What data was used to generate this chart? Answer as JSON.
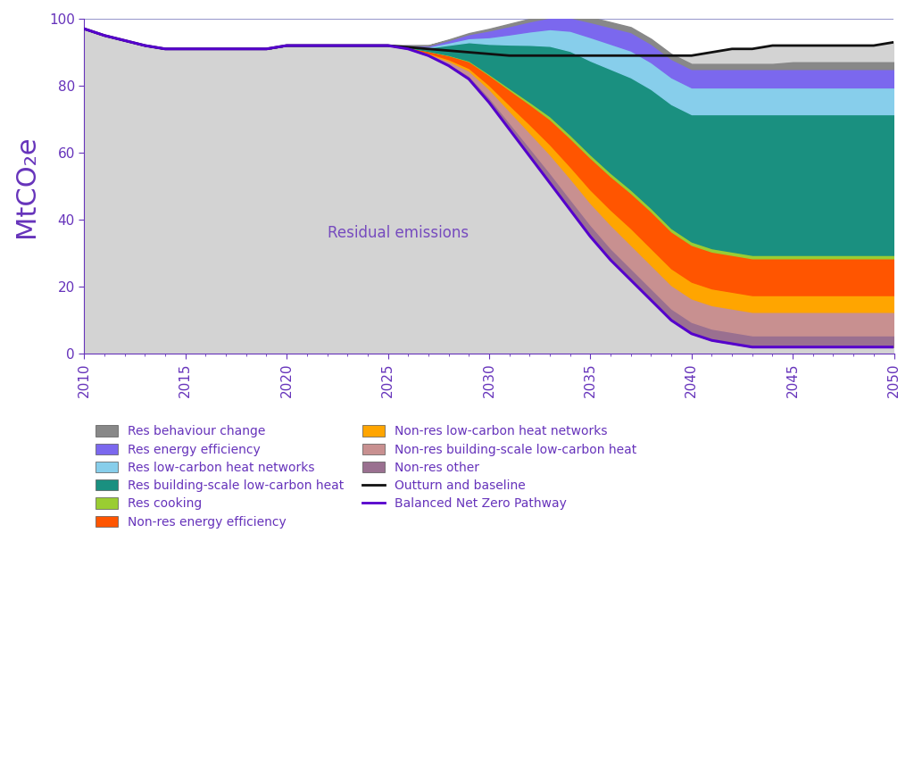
{
  "years": [
    2010,
    2011,
    2012,
    2013,
    2014,
    2015,
    2016,
    2017,
    2018,
    2019,
    2020,
    2021,
    2022,
    2023,
    2024,
    2025,
    2026,
    2027,
    2028,
    2029,
    2030,
    2031,
    2032,
    2033,
    2034,
    2035,
    2036,
    2037,
    2038,
    2039,
    2040,
    2041,
    2042,
    2043,
    2044,
    2045,
    2046,
    2047,
    2048,
    2049,
    2050
  ],
  "outturn_baseline": [
    97,
    95,
    93.5,
    92,
    91,
    91,
    91,
    91,
    91,
    91,
    92,
    92,
    92,
    92,
    92,
    92,
    91.5,
    91,
    90.5,
    90,
    89.5,
    89,
    89,
    89,
    89,
    89,
    89,
    89,
    89,
    89,
    89,
    90,
    91,
    91,
    92,
    92,
    92,
    92,
    92,
    92,
    93
  ],
  "bnz_pathway": [
    97,
    95,
    93.5,
    92,
    91,
    91,
    91,
    91,
    91,
    91,
    92,
    92,
    92,
    92,
    92,
    92,
    91,
    89,
    86,
    82,
    75,
    67,
    59,
    51,
    43,
    35,
    28,
    22,
    16,
    10,
    6,
    4,
    3,
    2,
    2,
    2,
    2,
    2,
    2,
    2,
    2
  ],
  "residual": [
    97,
    95,
    93.5,
    92,
    91,
    91,
    91,
    91,
    91,
    91,
    92,
    92,
    92,
    92,
    92,
    92,
    91,
    89,
    86,
    82,
    75,
    67,
    59,
    51,
    43,
    35,
    28,
    22,
    16,
    10,
    6,
    4,
    3,
    2,
    2,
    2,
    2,
    2,
    2,
    2,
    2
  ],
  "non_res_other": [
    0,
    0,
    0,
    0,
    0,
    0,
    0,
    0,
    0,
    0,
    0,
    0,
    0,
    0,
    0,
    0,
    0.1,
    0.3,
    0.6,
    1.0,
    1.5,
    2.0,
    2.5,
    3.0,
    3.2,
    3.5,
    3.5,
    3.5,
    3.5,
    3.5,
    3.5,
    3.5,
    3.5,
    3.5,
    3.5,
    3.5,
    3.5,
    3.5,
    3.5,
    3.5,
    3.5
  ],
  "non_res_building_scale": [
    0,
    0,
    0,
    0,
    0,
    0,
    0,
    0,
    0,
    0,
    0,
    0,
    0,
    0,
    0,
    0,
    0.1,
    0.3,
    0.8,
    1.5,
    2.5,
    3.5,
    4.5,
    5.5,
    6.2,
    6.5,
    7.0,
    7.0,
    7.0,
    7.0,
    7.0,
    7.0,
    7.0,
    7.0,
    7.0,
    7.0,
    7.0,
    7.0,
    7.0,
    7.0,
    7.0
  ],
  "non_res_lchn": [
    0,
    0,
    0,
    0,
    0,
    0,
    0,
    0,
    0,
    0,
    0,
    0,
    0,
    0,
    0,
    0,
    0.1,
    0.2,
    0.5,
    0.8,
    1.2,
    1.8,
    2.5,
    3.0,
    3.5,
    4.0,
    4.5,
    5.0,
    5.0,
    5.0,
    5.0,
    5.0,
    5.0,
    5.0,
    5.0,
    5.0,
    5.0,
    5.0,
    5.0,
    5.0,
    5.0
  ],
  "non_res_energy_efficiency": [
    0,
    0,
    0,
    0,
    0,
    0,
    0,
    0,
    0,
    0,
    0,
    0,
    0,
    0,
    0,
    0,
    0.2,
    0.6,
    1.2,
    2.0,
    3.0,
    4.5,
    6.0,
    7.5,
    8.5,
    9.5,
    10.0,
    10.5,
    11.0,
    11.0,
    11.0,
    11.0,
    11.0,
    11.0,
    11.0,
    11.0,
    11.0,
    11.0,
    11.0,
    11.0,
    11.0
  ],
  "res_cooking": [
    0,
    0,
    0,
    0,
    0,
    0,
    0,
    0,
    0,
    0,
    0,
    0,
    0,
    0,
    0,
    0,
    0,
    0,
    0.1,
    0.2,
    0.3,
    0.5,
    0.7,
    0.9,
    1.0,
    1.0,
    1.0,
    1.0,
    1.0,
    1.0,
    1.0,
    1.0,
    1.0,
    1.0,
    1.0,
    1.0,
    1.0,
    1.0,
    1.0,
    1.0,
    1.0
  ],
  "res_building_scale": [
    0,
    0,
    0,
    0,
    0,
    0,
    0,
    0,
    0,
    0,
    0,
    0,
    0,
    0,
    0,
    0,
    0.3,
    1.0,
    3.0,
    5.5,
    9.0,
    13.0,
    17.0,
    21.0,
    25.0,
    28.0,
    31.0,
    33.5,
    35.5,
    37.0,
    38.0,
    40.0,
    41.0,
    42.0,
    42.0,
    42.0,
    42.0,
    42.0,
    42.0,
    42.0,
    42.0
  ],
  "res_lchn": [
    0,
    0,
    0,
    0,
    0,
    0,
    0,
    0,
    0,
    0,
    0,
    0,
    0,
    0,
    0,
    0,
    0.1,
    0.3,
    0.7,
    1.2,
    2.0,
    3.0,
    4.0,
    5.0,
    6.0,
    7.0,
    7.5,
    8.0,
    8.0,
    8.0,
    8.0,
    8.0,
    8.0,
    8.0,
    8.0,
    8.0,
    8.0,
    8.0,
    8.0,
    8.0,
    8.0
  ],
  "res_energy_efficiency": [
    0,
    0,
    0,
    0,
    0,
    0,
    0,
    0,
    0,
    0,
    0,
    0,
    0,
    0,
    0,
    0,
    0.1,
    0.3,
    0.7,
    1.2,
    2.0,
    2.5,
    3.0,
    3.5,
    4.0,
    4.5,
    5.0,
    5.5,
    5.5,
    5.5,
    5.5,
    5.5,
    5.5,
    5.5,
    5.5,
    5.5,
    5.5,
    5.5,
    5.5,
    5.5,
    5.5
  ],
  "res_behaviour_change": [
    0,
    0,
    0,
    0,
    0,
    0,
    0,
    0,
    0,
    0,
    0,
    0,
    0,
    0,
    0,
    0,
    0.05,
    0.1,
    0.2,
    0.3,
    0.5,
    0.7,
    0.8,
    1.0,
    1.1,
    1.5,
    1.5,
    1.5,
    1.5,
    1.5,
    1.5,
    1.5,
    1.5,
    1.5,
    1.5,
    2.0,
    2.0,
    2.0,
    2.0,
    2.0,
    2.0
  ],
  "colors": {
    "residual": "#d3d3d3",
    "res_behaviour_change": "#888888",
    "res_energy_efficiency": "#7b68ee",
    "res_lchn": "#87ceeb",
    "res_building_scale": "#1a9080",
    "res_cooking": "#9acd32",
    "non_res_energy_efficiency": "#ff5500",
    "non_res_lchn": "#ffa500",
    "non_res_building_scale": "#c89090",
    "non_res_other": "#9a7090",
    "outturn_baseline": "#111111",
    "bnz_pathway": "#5500cc"
  },
  "ylim": [
    0,
    100
  ],
  "xlim": [
    2010,
    2050
  ],
  "ylabel": "MtCO₂e",
  "yticks": [
    0,
    20,
    40,
    60,
    80,
    100
  ],
  "xticks": [
    2010,
    2015,
    2020,
    2025,
    2030,
    2035,
    2040,
    2045,
    2050
  ],
  "residual_label": "Residual emissions",
  "grid_color": "#9999cc",
  "axis_color": "#6633bb",
  "background_color": "#ffffff",
  "legend_items_col1": [
    {
      "label": "Res behaviour change",
      "color": "#888888",
      "type": "patch"
    },
    {
      "label": "Res low-carbon heat networks",
      "color": "#87ceeb",
      "type": "patch"
    },
    {
      "label": "Res cooking",
      "color": "#9acd32",
      "type": "patch"
    },
    {
      "label": "Non-res low-carbon heat networks",
      "color": "#ffa500",
      "type": "patch"
    },
    {
      "label": "Non-res other",
      "color": "#9a7090",
      "type": "patch"
    },
    {
      "label": "Balanced Net Zero Pathway",
      "color": "#5500cc",
      "type": "line"
    }
  ],
  "legend_items_col2": [
    {
      "label": "Res energy efficiency",
      "color": "#7b68ee",
      "type": "patch"
    },
    {
      "label": "Res building-scale low-carbon heat",
      "color": "#1a9080",
      "type": "patch"
    },
    {
      "label": "Non-res energy efficiency",
      "color": "#ff5500",
      "type": "patch"
    },
    {
      "label": "Non-res building-scale low-carbon heat",
      "color": "#c89090",
      "type": "patch"
    },
    {
      "label": "Outturn and baseline",
      "color": "#111111",
      "type": "line"
    }
  ]
}
